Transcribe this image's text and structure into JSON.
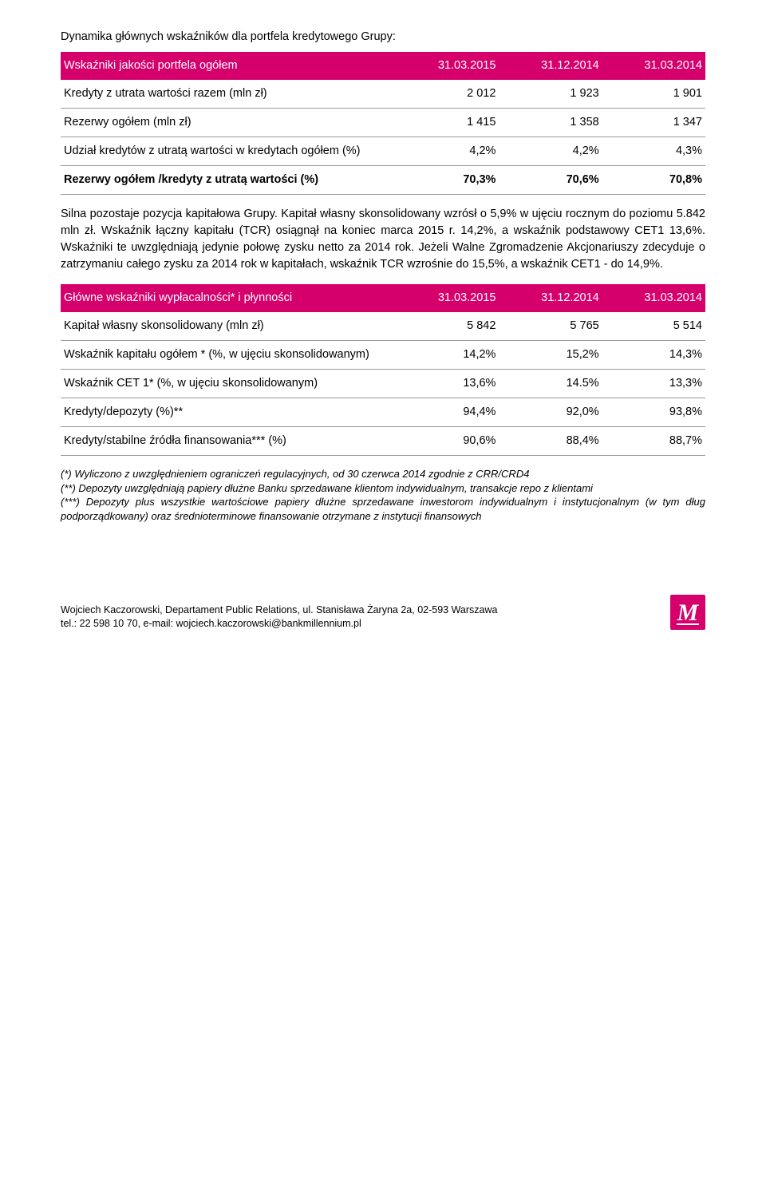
{
  "intro_para": "Dynamika głównych wskaźników dla portfela kredytowego Grupy:",
  "table1": {
    "header": [
      "Wskaźniki jakości portfela ogółem",
      "31.03.2015",
      "31.12.2014",
      "31.03.2014"
    ],
    "rows": [
      {
        "label": "Kredyty z utrata wartości razem (mln zł)",
        "c1": "2 012",
        "c2": "1 923",
        "c3": "1 901",
        "bold": false
      },
      {
        "label": "Rezerwy ogółem (mln zł)",
        "c1": "1 415",
        "c2": "1 358",
        "c3": "1 347",
        "bold": false
      },
      {
        "label": "Udział kredytów z utratą wartości w kredytach ogółem (%)",
        "c1": "4,2%",
        "c2": "4,2%",
        "c3": "4,3%",
        "bold": false
      },
      {
        "label": "Rezerwy ogółem /kredyty z utratą wartości (%)",
        "c1": "70,3%",
        "c2": "70,6%",
        "c3": "70,8%",
        "bold": true
      }
    ]
  },
  "body1": "Silna pozostaje pozycja kapitałowa Grupy. Kapitał własny skonsolidowany wzrósł o 5,9% w ujęciu rocznym do poziomu 5.842 mln zł. Wskaźnik łączny kapitału (TCR) osiągnął na koniec marca 2015 r. 14,2%, a wskaźnik podstawowy CET1 13,6%. Wskaźniki te uwzględniają jedynie połowę zysku netto za 2014 rok. Jeżeli Walne Zgromadzenie Akcjonariuszy zdecyduje o zatrzymaniu całego zysku za 2014 rok w kapitałach, wskaźnik TCR wzrośnie do 15,5%, a wskaźnik CET1 - do 14,9%.",
  "table2": {
    "header": [
      "Główne wskaźniki wypłacalności* i płynności",
      "31.03.2015",
      "31.12.2014",
      "31.03.2014"
    ],
    "rows": [
      {
        "label": "Kapitał własny skonsolidowany (mln zł)",
        "c1": "5 842",
        "c2": "5 765",
        "c3": "5 514",
        "bold": false
      },
      {
        "label": "Wskaźnik kapitału ogółem * (%, w ujęciu skonsolidowanym)",
        "c1": "14,2%",
        "c2": "15,2%",
        "c3": "14,3%",
        "bold": false
      },
      {
        "label": "Wskaźnik CET 1* (%, w ujęciu skonsolidowanym)",
        "c1": "13,6%",
        "c2": "14.5%",
        "c3": "13,3%",
        "bold": false
      },
      {
        "label": "Kredyty/depozyty (%)**",
        "c1": "94,4%",
        "c2": "92,0%",
        "c3": "93,8%",
        "bold": false
      },
      {
        "label": "Kredyty/stabilne źródła finansowania*** (%)",
        "c1": "90,6%",
        "c2": "88,4%",
        "c3": "88,7%",
        "bold": false
      }
    ]
  },
  "footnotes": {
    "f1": "(*) Wyliczono z uwzględnieniem ograniczeń regulacyjnych, od 30 czerwca 2014 zgodnie z CRR/CRD4",
    "f2": "(**) Depozyty uwzględniają papiery dłużne Banku sprzedawane klientom indywidualnym, transakcje repo z klientami",
    "f3": "(***) Depozyty plus wszystkie wartościowe papiery dłużne sprzedawane inwestorom indywidualnym i instytucjonalnym (w tym dług podporządkowany) oraz średnioterminowe finansowanie otrzymane z instytucji finansowych"
  },
  "footer": {
    "line1": "Wojciech Kaczorowski, Departament Public Relations, ul. Stanisława Żaryna 2a, 02-593 Warszawa",
    "line2": "tel.: 22 598 10 70, e-mail: wojciech.kaczorowski@bankmillennium.pl"
  },
  "colors": {
    "brand": "#d6006d",
    "rule": "#999999",
    "text": "#000000",
    "bg": "#ffffff"
  }
}
